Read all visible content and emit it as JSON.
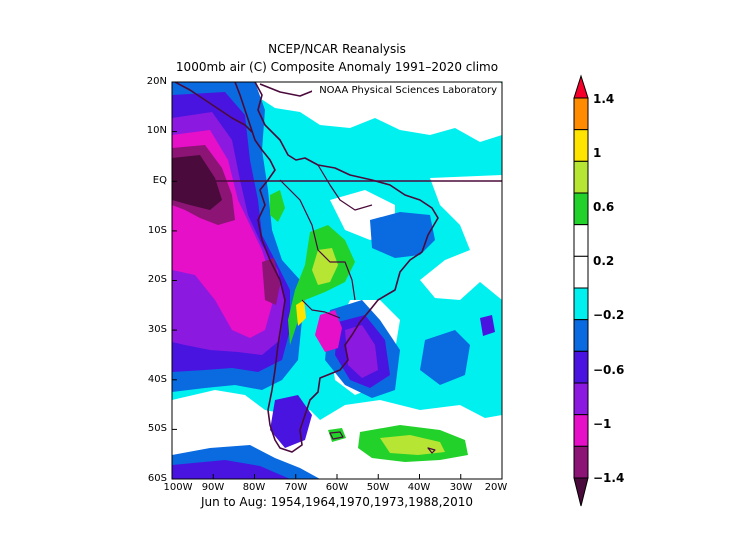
{
  "title_line1": "NCEP/NCAR Reanalysis",
  "title_line2": "1000mb air (C) Composite Anomaly 1991–2020 climo",
  "credit": "NOAA Physical Sciences Laboratory",
  "footer": "Jun to Aug: 1954,1964,1970,1973,1988,2010",
  "lat_ticks": [
    "20N",
    "10N",
    "EQ",
    "10S",
    "20S",
    "30S",
    "40S",
    "50S",
    "60S"
  ],
  "lon_ticks": [
    "100W",
    "90W",
    "80W",
    "70W",
    "60W",
    "50W",
    "40W",
    "30W",
    "20W"
  ],
  "colorbar": {
    "labels": [
      "1.4",
      "1",
      "0.6",
      "0.2",
      "−0.2",
      "−0.6",
      "−1",
      "−1.4"
    ],
    "colors": [
      "#f5002a",
      "#ff8c00",
      "#ffe400",
      "#b6e533",
      "#22d22a",
      "#ffffff",
      "#ffffff",
      "#00f0f0",
      "#0a6ae0",
      "#4a14e0",
      "#8c19e0",
      "#e510c8",
      "#8c1474",
      "#4a0a3c"
    ]
  }
}
